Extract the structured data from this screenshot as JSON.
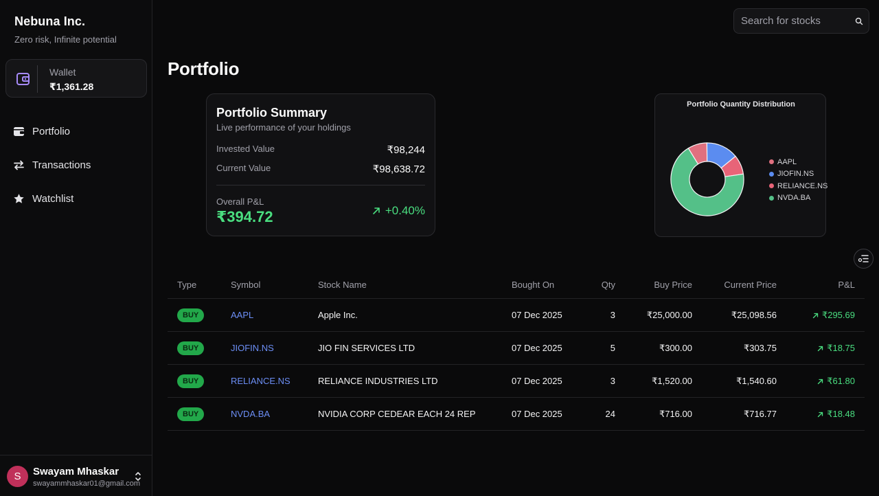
{
  "brand": {
    "name": "Nebuna Inc.",
    "tagline": "Zero risk, Infinite potential"
  },
  "wallet": {
    "label": "Wallet",
    "value": "₹1,361.28",
    "icon": "wallet-icon"
  },
  "nav": [
    {
      "label": "Portfolio",
      "icon": "portfolio-icon"
    },
    {
      "label": "Transactions",
      "icon": "transactions-icon"
    },
    {
      "label": "Watchlist",
      "icon": "star-icon"
    }
  ],
  "user": {
    "initial": "S",
    "name": "Swayam Mhaskar",
    "email": "swayammhaskar01@gmail.com"
  },
  "search": {
    "placeholder": "Search for stocks"
  },
  "page": {
    "title": "Portfolio"
  },
  "summary": {
    "title": "Portfolio Summary",
    "subtitle": "Live performance of your holdings",
    "invested_label": "Invested Value",
    "invested_value": "₹98,244",
    "current_label": "Current Value",
    "current_value": "₹98,638.72",
    "pnl_label": "Overall P&L",
    "pnl_value": "₹394.72",
    "pnl_percent": "+0.40%"
  },
  "chart_data": {
    "type": "pie",
    "title": "Portfolio Quantity Distribution",
    "donut": true,
    "legend_position": "right",
    "categories": [
      "AAPL",
      "JIOFIN.NS",
      "RELIANCE.NS",
      "NVDA.BA"
    ],
    "values": [
      3,
      5,
      3,
      24
    ],
    "colors": [
      "#e0707f",
      "#5b8cf0",
      "#e86478",
      "#54c088"
    ]
  },
  "table": {
    "headers": [
      "Type",
      "Symbol",
      "Stock Name",
      "Bought On",
      "Qty",
      "Buy Price",
      "Current Price",
      "P&L"
    ],
    "rows": [
      {
        "type": "BUY",
        "symbol": "AAPL",
        "name": "Apple Inc.",
        "bought_on": "07 Dec 2025",
        "qty": "3",
        "buy_price": "₹25,000.00",
        "current_price": "₹25,098.56",
        "pnl": "₹295.69"
      },
      {
        "type": "BUY",
        "symbol": "JIOFIN.NS",
        "name": "JIO FIN SERVICES LTD",
        "bought_on": "07 Dec 2025",
        "qty": "5",
        "buy_price": "₹300.00",
        "current_price": "₹303.75",
        "pnl": "₹18.75"
      },
      {
        "type": "BUY",
        "symbol": "RELIANCE.NS",
        "name": "RELIANCE INDUSTRIES LTD",
        "bought_on": "07 Dec 2025",
        "qty": "3",
        "buy_price": "₹1,520.00",
        "current_price": "₹1,540.60",
        "pnl": "₹61.80"
      },
      {
        "type": "BUY",
        "symbol": "NVDA.BA",
        "name": "NVIDIA CORP CEDEAR EACH 24 REP",
        "bought_on": "07 Dec 2025",
        "qty": "24",
        "buy_price": "₹716.00",
        "current_price": "₹716.77",
        "pnl": "₹18.48"
      }
    ]
  },
  "colors": {
    "accent_green": "#4ade80",
    "link_blue": "#6c8ef5",
    "badge_green": "#22a84a",
    "wallet_purple": "#a78bfa"
  }
}
